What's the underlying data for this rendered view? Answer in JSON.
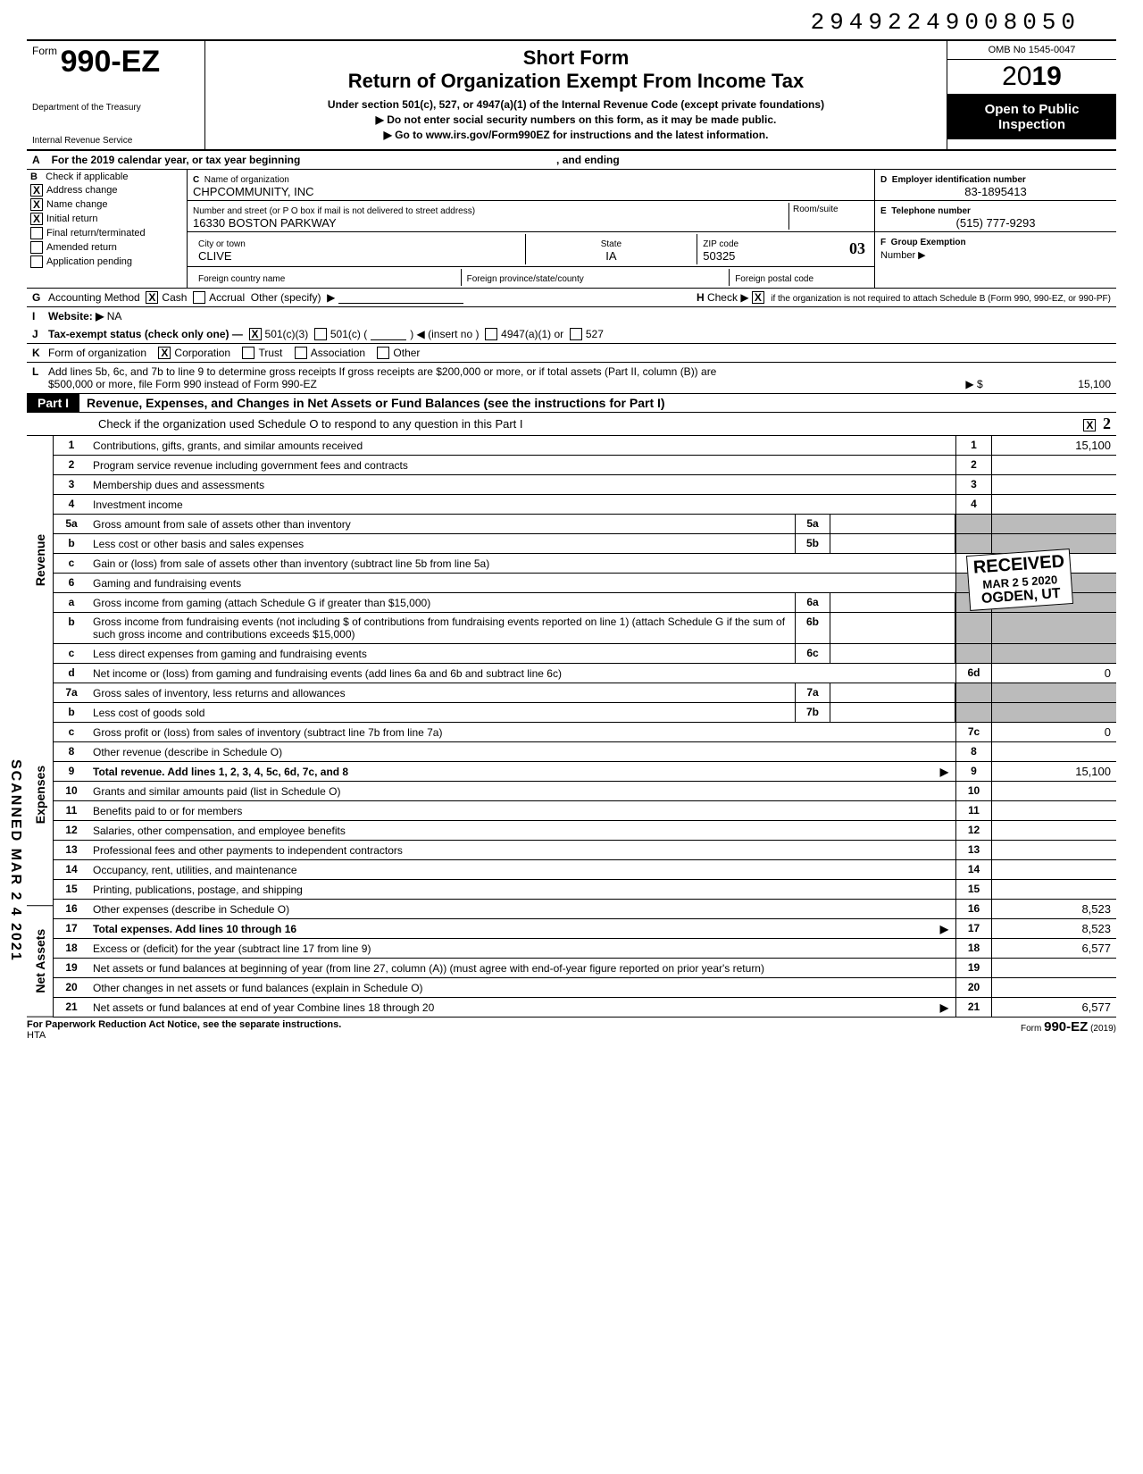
{
  "dln": "29492249008050",
  "omb": "OMB No 1545-0047",
  "short_form": "Short Form",
  "return_title": "Return of Organization Exempt From Income Tax",
  "under_section": "Under section 501(c), 527, or 4947(a)(1) of the Internal Revenue Code (except private foundations)",
  "no_ssn": "Do not enter social security numbers on this form, as it may be made public.",
  "go_to": "Go to www.irs.gov/Form990EZ for instructions and the latest information.",
  "form_label": "Form",
  "form_number": "990-EZ",
  "dept1": "Department of the Treasury",
  "dept2": "Internal Revenue Service",
  "year_prefix": "20",
  "year_bold": "19",
  "open_public": "Open to Public Inspection",
  "row_a": "For the 2019 calendar year, or tax year beginning",
  "row_a_end": ", and ending",
  "b_label": "B",
  "b_check": "Check if applicable",
  "b_items": [
    {
      "label": "Address change",
      "checked": true
    },
    {
      "label": "Name change",
      "checked": true
    },
    {
      "label": "Initial return",
      "checked": true
    },
    {
      "label": "Final return/terminated",
      "checked": false
    },
    {
      "label": "Amended return",
      "checked": false
    },
    {
      "label": "Application pending",
      "checked": false
    }
  ],
  "c_label": "C",
  "c_name_label": "Name of organization",
  "c_name": "CHPCOMMUNITY, INC",
  "c_addr_label": "Number and street (or P O box if mail is not delivered to street address)",
  "c_addr": "16330 BOSTON PARKWAY",
  "c_room_label": "Room/suite",
  "c_city_label": "City or town",
  "c_city": "CLIVE",
  "c_state_label": "State",
  "c_state": "IA",
  "c_zip_label": "ZIP code",
  "c_zip": "50325",
  "c_zip_hand": "03",
  "c_foreign_country": "Foreign country name",
  "c_foreign_prov": "Foreign province/state/county",
  "c_foreign_postal": "Foreign postal code",
  "d_label": "D",
  "d_ein_label": "Employer identification number",
  "d_ein": "83-1895413",
  "e_label": "E",
  "e_tel_label": "Telephone number",
  "e_tel": "(515) 777-9293",
  "f_label": "F",
  "f_group": "Group Exemption",
  "f_number": "Number ▶",
  "g_label": "G",
  "g_text": "Accounting Method",
  "g_cash": "Cash",
  "g_accrual": "Accrual",
  "g_other": "Other (specify)",
  "i_label": "I",
  "i_text": "Website: ▶",
  "i_val": "NA",
  "h_label": "H",
  "h_text": "Check ▶",
  "h_text2": "if the organization is not required to attach Schedule B (Form 990, 990-EZ, or 990-PF)",
  "j_label": "J",
  "j_text": "Tax-exempt status (check only one) —",
  "j_501c3": "501(c)(3)",
  "j_501c": "501(c) (",
  "j_insert": ") ◀ (insert no )",
  "j_4947": "4947(a)(1) or",
  "j_527": "527",
  "k_label": "K",
  "k_text": "Form of organization",
  "k_corp": "Corporation",
  "k_trust": "Trust",
  "k_assoc": "Association",
  "k_other": "Other",
  "l_label": "L",
  "l_text": "Add lines 5b, 6c, and 7b to line 9 to determine gross receipts  If gross receipts are $200,000 or more, or if total assets (Part II, column (B)) are $500,000 or more, file Form 990 instead of Form 990-EZ",
  "l_arrow": "▶ $",
  "l_val": "15,100",
  "part1_label": "Part I",
  "part1_title": "Revenue, Expenses, and Changes in Net Assets or Fund Balances (see the instructions for Part I)",
  "part1_sub": "Check if the organization used Schedule O to respond to any question in this Part I",
  "side_revenue": "Revenue",
  "side_expenses": "Expenses",
  "side_netassets": "Net Assets",
  "scanned": "SCANNED MAR 2 4 2021",
  "hand_2": "2",
  "stamp_received": "RECEIVED",
  "stamp_date": "MAR 2 5 2020",
  "stamp_ogden": "OGDEN, UT",
  "lines": {
    "1": {
      "num": "1",
      "desc": "Contributions, gifts, grants, and similar amounts received",
      "rnum": "1",
      "rval": "15,100"
    },
    "2": {
      "num": "2",
      "desc": "Program service revenue including government fees and contracts",
      "rnum": "2",
      "rval": ""
    },
    "3": {
      "num": "3",
      "desc": "Membership dues and assessments",
      "rnum": "3",
      "rval": ""
    },
    "4": {
      "num": "4",
      "desc": "Investment income",
      "rnum": "4",
      "rval": ""
    },
    "5a": {
      "num": "5a",
      "desc": "Gross amount from sale of assets other than inventory",
      "snum": "5a"
    },
    "5b": {
      "num": "b",
      "desc": "Less  cost or other basis and sales expenses",
      "snum": "5b"
    },
    "5c": {
      "num": "c",
      "desc": "Gain or (loss) from sale of assets other than inventory (subtract line 5b from line 5a)",
      "rnum": "5c",
      "rval": ""
    },
    "6": {
      "num": "6",
      "desc": "Gaming and fundraising events"
    },
    "6a": {
      "num": "a",
      "desc": "Gross income from gaming (attach Schedule G if greater than $15,000)",
      "snum": "6a"
    },
    "6b": {
      "num": "b",
      "desc": "Gross income from fundraising events (not including       $                       of contributions from fundraising events reported on line 1) (attach Schedule G if the sum of such gross income and contributions exceeds $15,000)",
      "snum": "6b"
    },
    "6c": {
      "num": "c",
      "desc": "Less  direct expenses from gaming and fundraising events",
      "snum": "6c"
    },
    "6d": {
      "num": "d",
      "desc": "Net income or (loss) from gaming and fundraising events (add lines 6a and 6b and subtract line 6c)",
      "rnum": "6d",
      "rval": "0"
    },
    "7a": {
      "num": "7a",
      "desc": "Gross sales of inventory, less returns and allowances",
      "snum": "7a"
    },
    "7b": {
      "num": "b",
      "desc": "Less  cost of goods sold",
      "snum": "7b"
    },
    "7c": {
      "num": "c",
      "desc": "Gross profit or (loss) from sales of inventory (subtract line 7b from line 7a)",
      "rnum": "7c",
      "rval": "0"
    },
    "8": {
      "num": "8",
      "desc": "Other revenue (describe in Schedule O)",
      "rnum": "8",
      "rval": ""
    },
    "9": {
      "num": "9",
      "desc": "Total revenue. Add lines 1, 2, 3, 4, 5c, 6d, 7c, and 8",
      "rnum": "9",
      "rval": "15,100",
      "bold": true,
      "arrow": true
    },
    "10": {
      "num": "10",
      "desc": "Grants and similar amounts paid (list in Schedule O)",
      "rnum": "10",
      "rval": ""
    },
    "11": {
      "num": "11",
      "desc": "Benefits paid to or for members",
      "rnum": "11",
      "rval": ""
    },
    "12": {
      "num": "12",
      "desc": "Salaries, other compensation, and employee benefits",
      "rnum": "12",
      "rval": ""
    },
    "13": {
      "num": "13",
      "desc": "Professional fees and other payments to independent contractors",
      "rnum": "13",
      "rval": ""
    },
    "14": {
      "num": "14",
      "desc": "Occupancy, rent, utilities, and maintenance",
      "rnum": "14",
      "rval": ""
    },
    "15": {
      "num": "15",
      "desc": "Printing, publications, postage, and shipping",
      "rnum": "15",
      "rval": ""
    },
    "16": {
      "num": "16",
      "desc": "Other expenses (describe in Schedule O)",
      "rnum": "16",
      "rval": "8,523"
    },
    "17": {
      "num": "17",
      "desc": "Total expenses. Add lines 10 through 16",
      "rnum": "17",
      "rval": "8,523",
      "bold": true,
      "arrow": true
    },
    "18": {
      "num": "18",
      "desc": "Excess or (deficit) for the year (subtract line 17 from line 9)",
      "rnum": "18",
      "rval": "6,577"
    },
    "19": {
      "num": "19",
      "desc": "Net assets or fund balances at beginning of year (from line 27, column (A)) (must agree with end-of-year figure reported on prior year's return)",
      "rnum": "19",
      "rval": ""
    },
    "20": {
      "num": "20",
      "desc": "Other changes in net assets or fund balances (explain in Schedule O)",
      "rnum": "20",
      "rval": ""
    },
    "21": {
      "num": "21",
      "desc": "Net assets or fund balances at end of year  Combine lines 18 through 20",
      "rnum": "21",
      "rval": "6,577",
      "arrow": true
    }
  },
  "footer_left": "For Paperwork Reduction Act Notice, see the separate instructions.",
  "footer_hta": "HTA",
  "footer_right": "Form 990-EZ (2019)"
}
